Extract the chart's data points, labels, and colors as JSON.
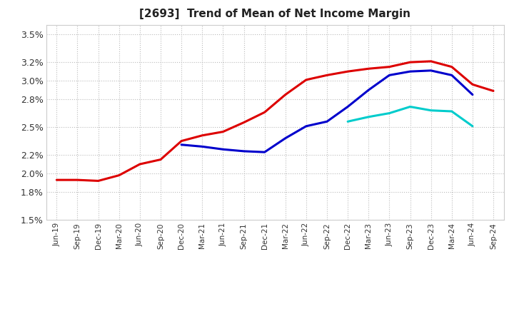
{
  "title": "[2693]  Trend of Mean of Net Income Margin",
  "title_fontsize": 11,
  "ylim": [
    0.015,
    0.036
  ],
  "yticks": [
    0.015,
    0.018,
    0.02,
    0.022,
    0.025,
    0.028,
    0.03,
    0.032,
    0.035
  ],
  "ytick_labels": [
    "1.5%",
    "1.8%",
    "2.0%",
    "2.2%",
    "2.5%",
    "2.8%",
    "3.0%",
    "3.2%",
    "3.5%"
  ],
  "x_labels": [
    "Jun-19",
    "Sep-19",
    "Dec-19",
    "Mar-20",
    "Jun-20",
    "Sep-20",
    "Dec-20",
    "Mar-21",
    "Jun-21",
    "Sep-21",
    "Dec-21",
    "Mar-22",
    "Jun-22",
    "Sep-22",
    "Dec-22",
    "Mar-23",
    "Jun-23",
    "Sep-23",
    "Dec-23",
    "Mar-24",
    "Jun-24",
    "Sep-24"
  ],
  "series_3y": [
    0.0193,
    0.0193,
    0.0192,
    0.0198,
    0.021,
    0.0215,
    0.0235,
    0.0241,
    0.0245,
    0.0255,
    0.0266,
    0.0285,
    0.0301,
    0.0306,
    0.031,
    0.0313,
    0.0315,
    0.032,
    0.0321,
    0.0315,
    0.0296,
    0.0289
  ],
  "series_5y": [
    null,
    null,
    null,
    null,
    null,
    null,
    0.0231,
    0.0229,
    0.0226,
    0.0224,
    0.0223,
    0.0238,
    0.0251,
    0.0256,
    0.0272,
    0.029,
    0.0306,
    0.031,
    0.0311,
    0.0306,
    0.0285,
    null
  ],
  "series_7y": [
    null,
    null,
    null,
    null,
    null,
    null,
    null,
    null,
    null,
    null,
    null,
    null,
    null,
    null,
    0.0256,
    0.0261,
    0.0265,
    0.0272,
    0.0268,
    0.0267,
    0.0251,
    null
  ],
  "series_10y": [],
  "color_3y": "#dd0000",
  "color_5y": "#0000cc",
  "color_7y": "#00cccc",
  "color_10y": "#008800",
  "background_color": "#ffffff",
  "grid_color": "#bbbbbb"
}
